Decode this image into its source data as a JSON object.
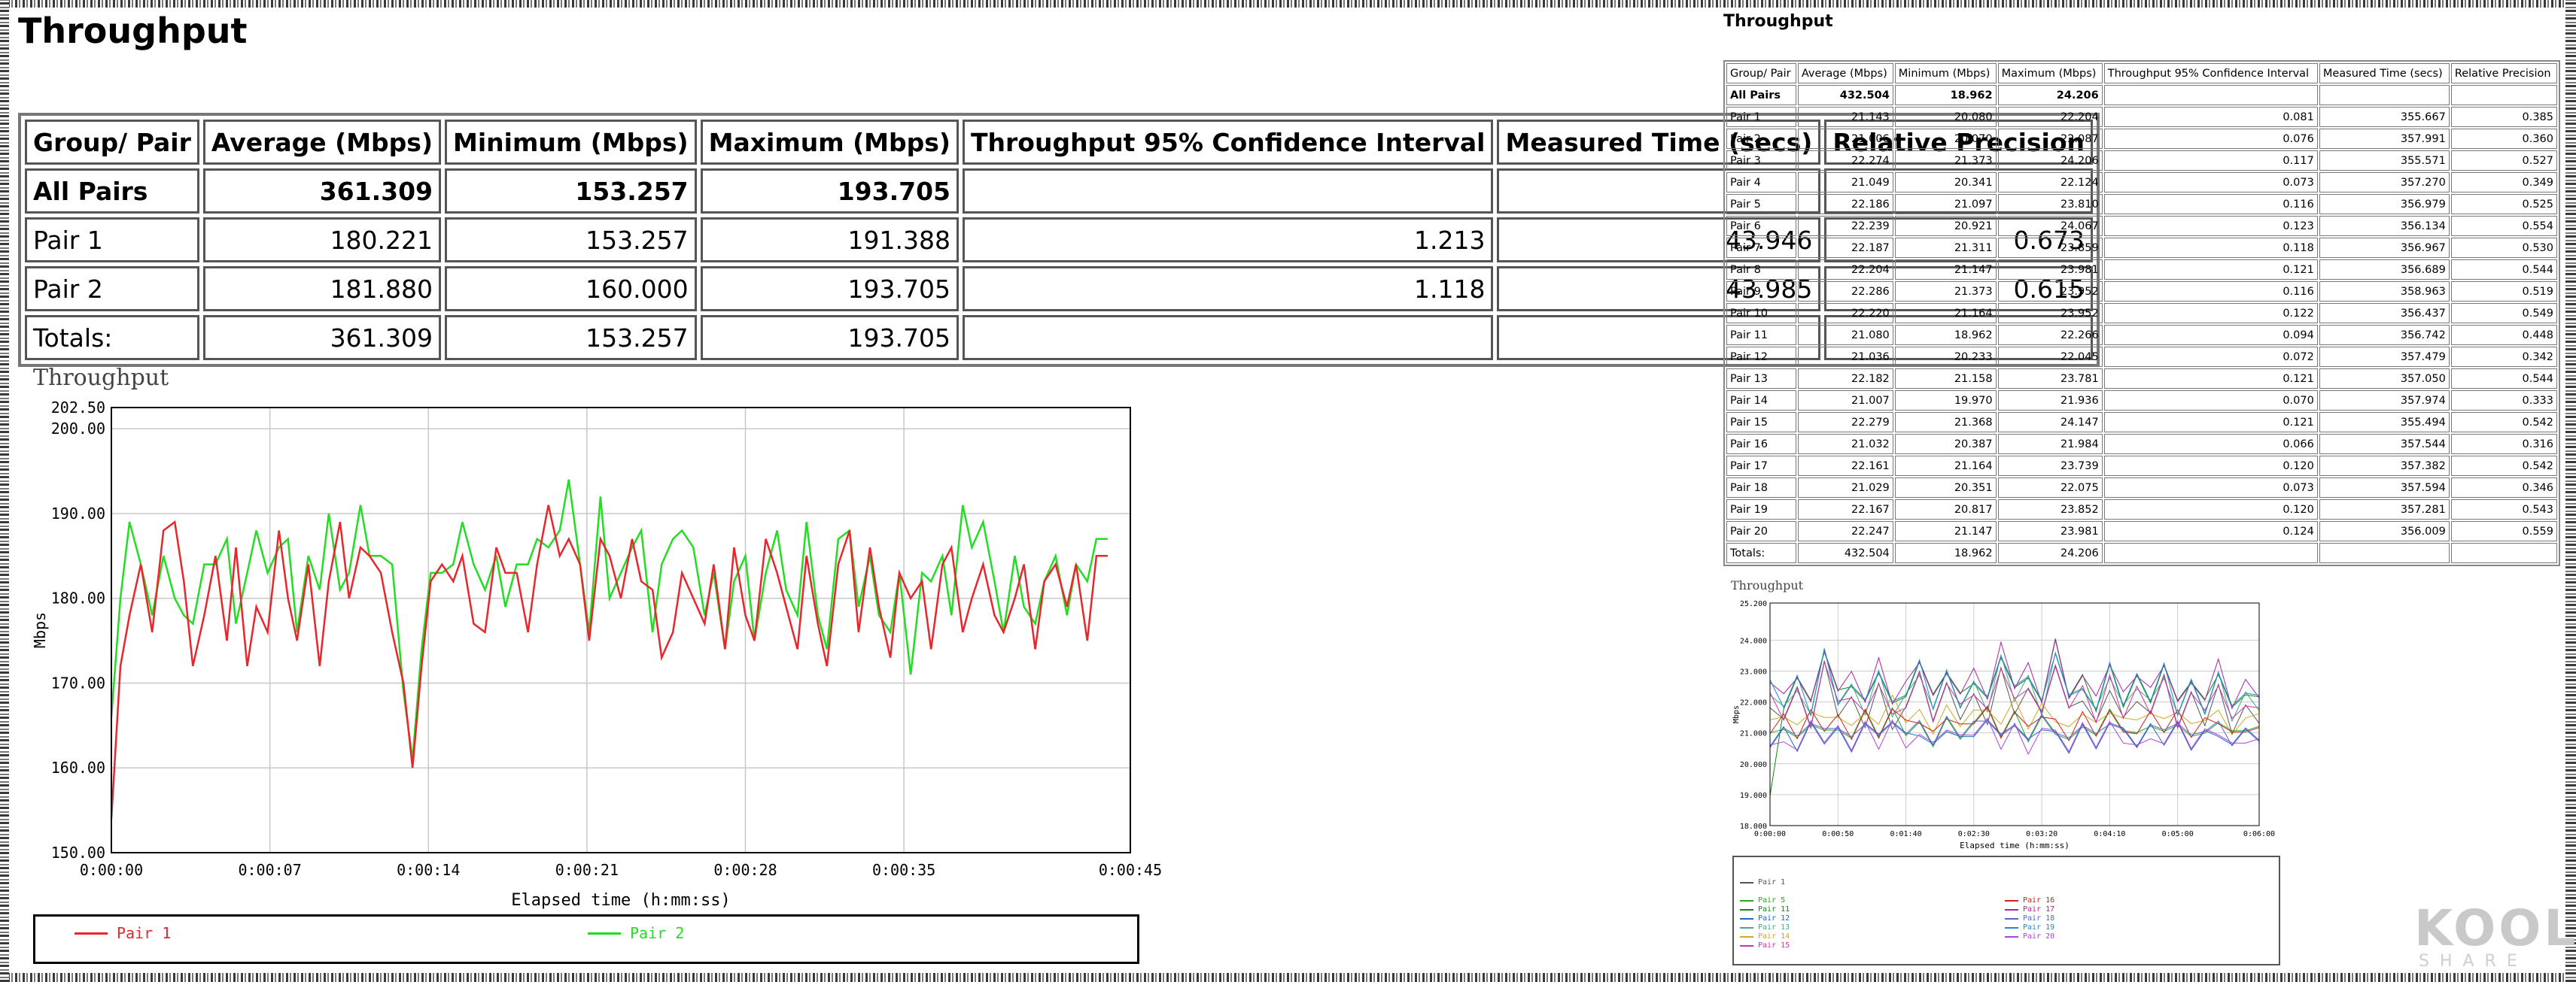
{
  "main": {
    "title": "Throughput",
    "headers": [
      "Group/ Pair",
      "Average (Mbps)",
      "Minimum (Mbps)",
      "Maximum (Mbps)",
      "Throughput 95% Confidence Interval",
      "Measured Time (secs)",
      "Relative Precision"
    ],
    "rows": [
      [
        "All Pairs",
        "361.309",
        "153.257",
        "193.705",
        "",
        "",
        ""
      ],
      [
        "Pair 1",
        "180.221",
        "153.257",
        "191.388",
        "1.213",
        "43.946",
        "0.673"
      ],
      [
        "Pair 2",
        "181.880",
        "160.000",
        "193.705",
        "1.118",
        "43.985",
        "0.615"
      ],
      [
        "Totals:",
        "361.309",
        "153.257",
        "193.705",
        "",
        "",
        ""
      ]
    ]
  },
  "side": {
    "title": "Throughput",
    "headers": [
      "Group/ Pair",
      "Average (Mbps)",
      "Minimum (Mbps)",
      "Maximum (Mbps)",
      "Throughput 95% Confidence Interval",
      "Measured Time (secs)",
      "Relative Precision"
    ],
    "rows": [
      [
        "All Pairs",
        "432.504",
        "18.962",
        "24.206",
        "",
        "",
        ""
      ],
      [
        "Pair 1",
        "21.143",
        "20.080",
        "22.204",
        "0.081",
        "355.667",
        "0.385"
      ],
      [
        "Pair 2",
        "21.006",
        "20.070",
        "22.087",
        "0.076",
        "357.991",
        "0.360"
      ],
      [
        "Pair 3",
        "22.274",
        "21.373",
        "24.206",
        "0.117",
        "355.571",
        "0.527"
      ],
      [
        "Pair 4",
        "21.049",
        "20.341",
        "22.124",
        "0.073",
        "357.270",
        "0.349"
      ],
      [
        "Pair 5",
        "22.186",
        "21.097",
        "23.810",
        "0.116",
        "356.979",
        "0.525"
      ],
      [
        "Pair 6",
        "22.239",
        "20.921",
        "24.067",
        "0.123",
        "356.134",
        "0.554"
      ],
      [
        "Pair 7",
        "22.187",
        "21.311",
        "23.859",
        "0.118",
        "356.967",
        "0.530"
      ],
      [
        "Pair 8",
        "22.204",
        "21.147",
        "23.981",
        "0.121",
        "356.689",
        "0.544"
      ],
      [
        "Pair 9",
        "22.286",
        "21.373",
        "23.952",
        "0.116",
        "358.963",
        "0.519"
      ],
      [
        "Pair 10",
        "22.220",
        "21.164",
        "23.952",
        "0.122",
        "356.437",
        "0.549"
      ],
      [
        "Pair 11",
        "21.080",
        "18.962",
        "22.266",
        "0.094",
        "356.742",
        "0.448"
      ],
      [
        "Pair 12",
        "21.036",
        "20.233",
        "22.045",
        "0.072",
        "357.479",
        "0.342"
      ],
      [
        "Pair 13",
        "22.182",
        "21.158",
        "23.781",
        "0.121",
        "357.050",
        "0.544"
      ],
      [
        "Pair 14",
        "21.007",
        "19.970",
        "21.936",
        "0.070",
        "357.974",
        "0.333"
      ],
      [
        "Pair 15",
        "22.279",
        "21.368",
        "24.147",
        "0.121",
        "355.494",
        "0.542"
      ],
      [
        "Pair 16",
        "21.032",
        "20.387",
        "21.984",
        "0.066",
        "357.544",
        "0.316"
      ],
      [
        "Pair 17",
        "22.161",
        "21.164",
        "23.739",
        "0.120",
        "357.382",
        "0.542"
      ],
      [
        "Pair 18",
        "21.029",
        "20.351",
        "22.075",
        "0.073",
        "357.594",
        "0.346"
      ],
      [
        "Pair 19",
        "22.167",
        "20.817",
        "23.852",
        "0.120",
        "357.281",
        "0.543"
      ],
      [
        "Pair 20",
        "22.247",
        "21.147",
        "23.981",
        "0.124",
        "356.009",
        "0.559"
      ],
      [
        "Totals:",
        "432.504",
        "18.962",
        "24.206",
        "",
        "",
        ""
      ]
    ]
  },
  "chart_data": [
    {
      "type": "line",
      "title": "Throughput",
      "xlabel": "Elapsed time (h:mm:ss)",
      "ylabel": "Mbps",
      "ylim": [
        150.0,
        202.5
      ],
      "yticks": [
        "150.00",
        "160.00",
        "170.00",
        "180.00",
        "190.00",
        "200.00",
        "202.50"
      ],
      "xticks": [
        "0:00:00",
        "0:00:07",
        "0:00:14",
        "0:00:21",
        "0:00:28",
        "0:00:35",
        "0:00:45"
      ],
      "xtick_seconds": [
        0,
        7,
        14,
        21,
        28,
        35,
        45
      ],
      "xlim": [
        0,
        45
      ],
      "grid": true,
      "legend": "bottom",
      "series": [
        {
          "name": "Pair 1",
          "color": "#e8262b",
          "x": [
            0,
            0.4,
            0.8,
            1.3,
            1.8,
            2.3,
            2.8,
            3.2,
            3.6,
            4.1,
            4.6,
            5.1,
            5.5,
            6,
            6.4,
            6.9,
            7.4,
            7.8,
            8.2,
            8.7,
            9.2,
            9.6,
            10.1,
            10.5,
            11,
            11.4,
            11.9,
            12.4,
            12.9,
            13.3,
            13.7,
            14.1,
            14.6,
            15.1,
            15.5,
            16,
            16.5,
            17,
            17.4,
            17.9,
            18.4,
            18.8,
            19.3,
            19.8,
            20.2,
            20.7,
            21.1,
            21.6,
            22,
            22.5,
            23,
            23.4,
            23.9,
            24.3,
            24.8,
            25.2,
            25.7,
            26.2,
            26.6,
            27.1,
            27.5,
            28,
            28.4,
            28.9,
            29.4,
            29.8,
            30.3,
            30.7,
            31.2,
            31.6,
            32.1,
            32.6,
            33,
            33.5,
            33.9,
            34.4,
            34.8,
            35.3,
            35.8,
            36.2,
            36.7,
            37.1,
            37.6,
            38,
            38.5,
            39,
            39.4,
            39.9,
            40.3,
            40.8,
            41.2,
            41.7,
            42.2,
            42.6,
            43.1,
            43.5,
            44
          ],
          "y": [
            154,
            172,
            178,
            184,
            176,
            188,
            189,
            182,
            172,
            178,
            185,
            175,
            186,
            172,
            179,
            176,
            188,
            180,
            175,
            184,
            172,
            182,
            189,
            180,
            186,
            185,
            183,
            176,
            170,
            160,
            172,
            182,
            184,
            182,
            185,
            177,
            176,
            186,
            183,
            183,
            176,
            184,
            191,
            185,
            187,
            184,
            175,
            187,
            185,
            180,
            187,
            182,
            181,
            173,
            176,
            183,
            180,
            177,
            184,
            174,
            186,
            178,
            175,
            187,
            183,
            179,
            174,
            185,
            177,
            172,
            184,
            188,
            176,
            186,
            179,
            173,
            183,
            180,
            182,
            174,
            184,
            186,
            176,
            180,
            184,
            178,
            176,
            180,
            184,
            174,
            182,
            184,
            179,
            184,
            175,
            185,
            185
          ]
        },
        {
          "name": "Pair 2",
          "color": "#22dd22",
          "x": [
            0,
            0.4,
            0.8,
            1.3,
            1.8,
            2.3,
            2.8,
            3.2,
            3.6,
            4.1,
            4.6,
            5.1,
            5.5,
            6,
            6.4,
            6.9,
            7.4,
            7.8,
            8.2,
            8.7,
            9.2,
            9.6,
            10.1,
            10.5,
            11,
            11.4,
            11.9,
            12.4,
            12.9,
            13.3,
            13.7,
            14.1,
            14.6,
            15.1,
            15.5,
            16,
            16.5,
            17,
            17.4,
            17.9,
            18.4,
            18.8,
            19.3,
            19.8,
            20.2,
            20.7,
            21.1,
            21.6,
            22,
            22.5,
            23,
            23.4,
            23.9,
            24.3,
            24.8,
            25.2,
            25.7,
            26.2,
            26.6,
            27.1,
            27.5,
            28,
            28.4,
            28.9,
            29.4,
            29.8,
            30.3,
            30.7,
            31.2,
            31.6,
            32.1,
            32.6,
            33,
            33.5,
            33.9,
            34.4,
            34.8,
            35.3,
            35.8,
            36.2,
            36.7,
            37.1,
            37.6,
            38,
            38.5,
            39,
            39.4,
            39.9,
            40.3,
            40.8,
            41.2,
            41.7,
            42.2,
            42.6,
            43.1,
            43.5,
            44
          ],
          "y": [
            166,
            180,
            189,
            184,
            178,
            185,
            180,
            178,
            177,
            184,
            184,
            187,
            177,
            183,
            188,
            183,
            186,
            187,
            176,
            185,
            181,
            190,
            181,
            183,
            191,
            185,
            185,
            184,
            169,
            161,
            174,
            183,
            183,
            184,
            189,
            184,
            181,
            185,
            179,
            184,
            184,
            187,
            186,
            188,
            194,
            184,
            176,
            192,
            180,
            183,
            186,
            188,
            176,
            184,
            187,
            188,
            186,
            178,
            183,
            174,
            182,
            185,
            175,
            183,
            188,
            181,
            178,
            189,
            178,
            174,
            187,
            188,
            179,
            185,
            178,
            176,
            183,
            171,
            183,
            182,
            185,
            178,
            191,
            186,
            189,
            182,
            176,
            185,
            179,
            177,
            182,
            185,
            178,
            184,
            182,
            187,
            187
          ]
        }
      ]
    },
    {
      "type": "line",
      "title": "Throughput",
      "xlabel": "Elapsed time (h:mm:ss)",
      "ylabel": "Mbps",
      "ylim": [
        18.0,
        25.2
      ],
      "yticks": [
        "18.000",
        "19.000",
        "20.000",
        "21.000",
        "22.000",
        "23.000",
        "24.000",
        "25.200"
      ],
      "xticks": [
        "0:00:00",
        "0:00:50",
        "0:01:40",
        "0:02:30",
        "0:03:20",
        "0:04:10",
        "0:05:00",
        "0:06:00"
      ],
      "xtick_seconds": [
        0,
        50,
        100,
        150,
        200,
        250,
        300,
        360
      ],
      "xlim": [
        0,
        360
      ],
      "grid": true,
      "legend": "bottom",
      "series_names": [
        "Pair 1",
        "Pair 5",
        "Pair 11",
        "Pair 12",
        "Pair 13",
        "Pair 14",
        "Pair 15",
        "Pair 16",
        "Pair 17",
        "Pair 18",
        "Pair 19",
        "Pair 20"
      ],
      "series_colors": [
        "#555555",
        "#22aa22",
        "#118811",
        "#2266cc",
        "#44aa88",
        "#ccaa22",
        "#cc33aa",
        "#cc2222",
        "#aa22aa",
        "#5566cc",
        "#2288cc",
        "#aa44dd"
      ],
      "upper_band_x": [
        0,
        10,
        20,
        30,
        40,
        50,
        60,
        70,
        80,
        90,
        100,
        110,
        120,
        130,
        140,
        150,
        160,
        170,
        180,
        190,
        200,
        210,
        220,
        230,
        240,
        250,
        260,
        270,
        280,
        290,
        300,
        310,
        320,
        330,
        340,
        350,
        360
      ],
      "upper_band_y": [
        22.4,
        21.8,
        22.6,
        21.6,
        23.5,
        22.0,
        22.4,
        21.7,
        22.9,
        21.7,
        22.2,
        23.1,
        21.8,
        22.8,
        21.9,
        22.5,
        21.8,
        23.4,
        22.2,
        22.8,
        21.8,
        23.6,
        22.0,
        22.5,
        21.6,
        22.9,
        21.8,
        22.6,
        22.0,
        23.0,
        21.6,
        22.5,
        21.7,
        22.8,
        21.5,
        22.2,
        21.9
      ],
      "lower_band_y": [
        20.9,
        21.3,
        20.8,
        21.5,
        21.1,
        21.4,
        20.9,
        21.6,
        21.0,
        21.7,
        21.1,
        21.3,
        20.8,
        21.5,
        21.1,
        21.4,
        21.7,
        21.0,
        21.6,
        20.9,
        21.5,
        21.2,
        20.8,
        21.5,
        21.0,
        21.6,
        21.2,
        20.9,
        21.4,
        21.0,
        21.5,
        20.9,
        21.3,
        21.4,
        20.9,
        21.2,
        21.1
      ]
    }
  ],
  "legend": {
    "pair1": "Pair 1",
    "pair2": "Pair 2"
  },
  "small_legend": [
    "Pair 1",
    "Pair 5",
    "Pair 11",
    "Pair 12",
    "Pair 13",
    "Pair 14",
    "Pair 15",
    "Pair 16",
    "Pair 17",
    "Pair 18",
    "Pair 19",
    "Pair 20"
  ],
  "watermark": {
    "brand": "KOOL",
    "sub": "SHARE"
  }
}
